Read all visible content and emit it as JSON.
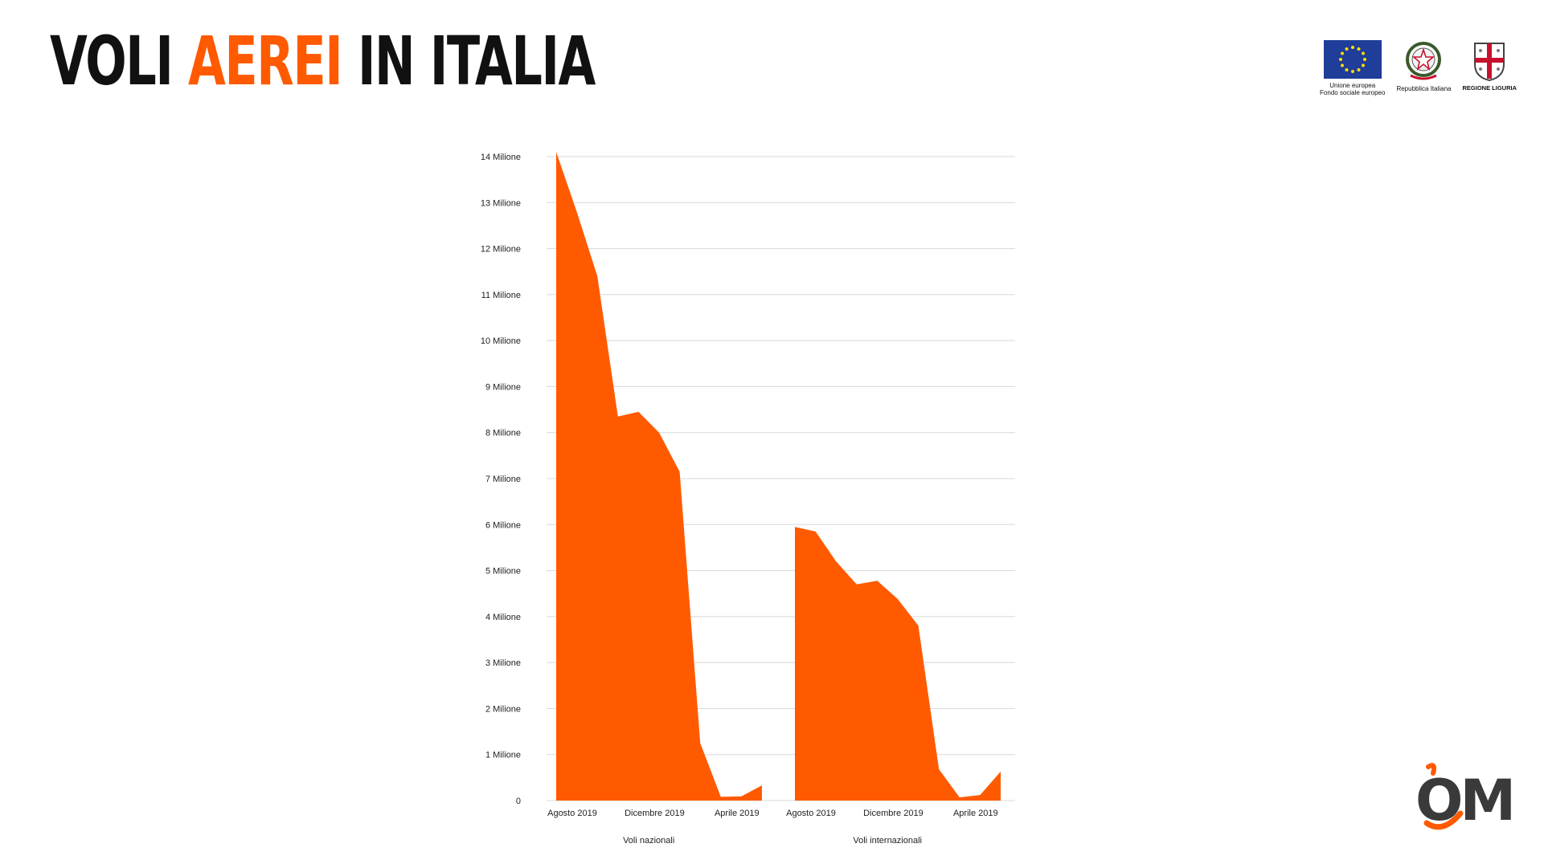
{
  "header": {
    "title_part1": "VOLI ",
    "title_accent": "AEREI",
    "title_part2": " IN ITALIA"
  },
  "logos": [
    {
      "name": "eu-flag",
      "caption_line1": "Unione europea",
      "caption_line2": "Fondo sociale europeo"
    },
    {
      "name": "italian-emblem",
      "caption_line1": "Repubblica Italiana",
      "caption_line2": ""
    },
    {
      "name": "regione-liguria",
      "caption_line1": "REGIONE LIGURIA",
      "caption_line2": ""
    }
  ],
  "brand": {
    "text": "OM",
    "accent_color": "#ff5a00"
  },
  "colors": {
    "area": "#ff5a00",
    "grid": "#d8d8d8",
    "text": "#222222",
    "title_accent": "#ff5a00"
  },
  "chart_data": {
    "type": "area",
    "y_ticks": [
      "0",
      "1 Milione",
      "2 Milione",
      "3 Milione",
      "4 Milione",
      "5 Milione",
      "6 Milione",
      "7 Milione",
      "8 Milione",
      "9 Milione",
      "10 Milione",
      "11 Milione",
      "12 Milione",
      "13 Milione",
      "14 Milione"
    ],
    "ylim": [
      0,
      14000000
    ],
    "grid": true,
    "groups": [
      {
        "name": "Voli nazionali",
        "x_tick_labels": [
          "Agosto 2019",
          "Dicembre 2019",
          "Aprile 2019"
        ],
        "values": [
          14100000,
          12800000,
          11400000,
          8350000,
          8450000,
          8000000,
          7150000,
          1250000,
          80000,
          90000,
          330000
        ]
      },
      {
        "name": "Voli internazionali",
        "x_tick_labels": [
          "Agosto 2019",
          "Dicembre 2019",
          "Aprile 2019"
        ],
        "values": [
          5950000,
          5850000,
          5200000,
          4700000,
          4780000,
          4380000,
          3800000,
          680000,
          70000,
          120000,
          630000
        ]
      }
    ]
  }
}
